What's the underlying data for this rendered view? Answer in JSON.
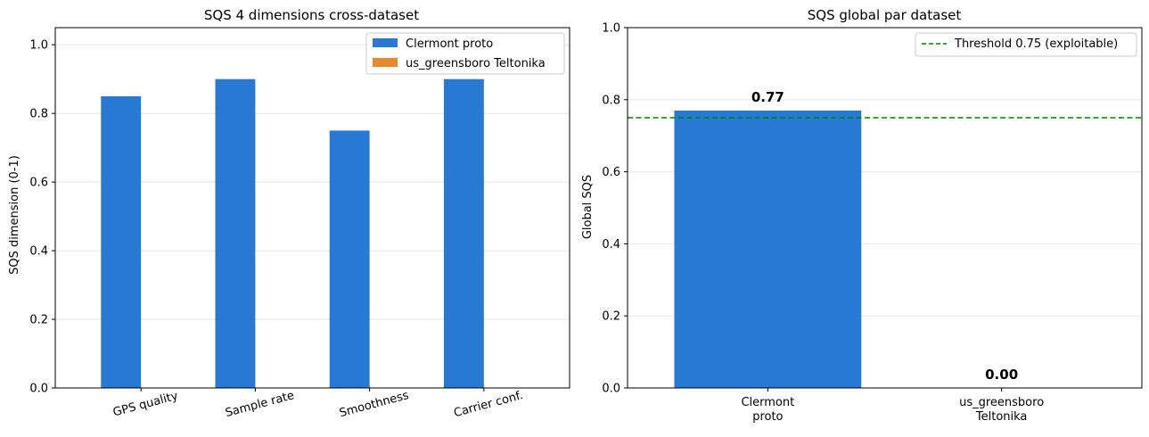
{
  "chart_data": [
    {
      "type": "bar",
      "title": "SQS 4 dimensions cross-dataset",
      "xlabel": "",
      "ylabel": "SQS dimension (0-1)",
      "categories": [
        "GPS quality",
        "Sample rate",
        "Smoothness",
        "Carrier conf."
      ],
      "series": [
        {
          "name": "Clermont proto",
          "values": [
            0.85,
            0.9,
            0.75,
            0.9
          ],
          "color": "#2779d4"
        },
        {
          "name": "us_greensboro Teltonika",
          "values": [
            0,
            0,
            0,
            0
          ],
          "color": "#e88a2b"
        }
      ],
      "ylim": [
        0,
        1.05
      ],
      "yticks": [
        "0.0",
        "0.2",
        "0.4",
        "0.6",
        "0.8",
        "1.0"
      ],
      "grid": "y",
      "legend": "top-right",
      "xtick_rotation": "slanted"
    },
    {
      "type": "bar",
      "title": "SQS global par dataset",
      "xlabel": "",
      "ylabel": "Global SQS",
      "categories": [
        [
          "Clermont",
          "proto"
        ],
        [
          "us_greensboro",
          "Teltonika"
        ]
      ],
      "values": [
        0.77,
        0.0
      ],
      "value_labels": [
        "0.77",
        "0.00"
      ],
      "color": "#2779d4",
      "ylim": [
        0,
        1.0
      ],
      "yticks": [
        "0.0",
        "0.2",
        "0.4",
        "0.6",
        "0.8",
        "1.0"
      ],
      "grid": "y",
      "threshold": {
        "value": 0.75,
        "label": "Threshold 0.75 (exploitable)",
        "color": "#008000",
        "style": "dashed"
      },
      "legend": "top-right"
    }
  ]
}
